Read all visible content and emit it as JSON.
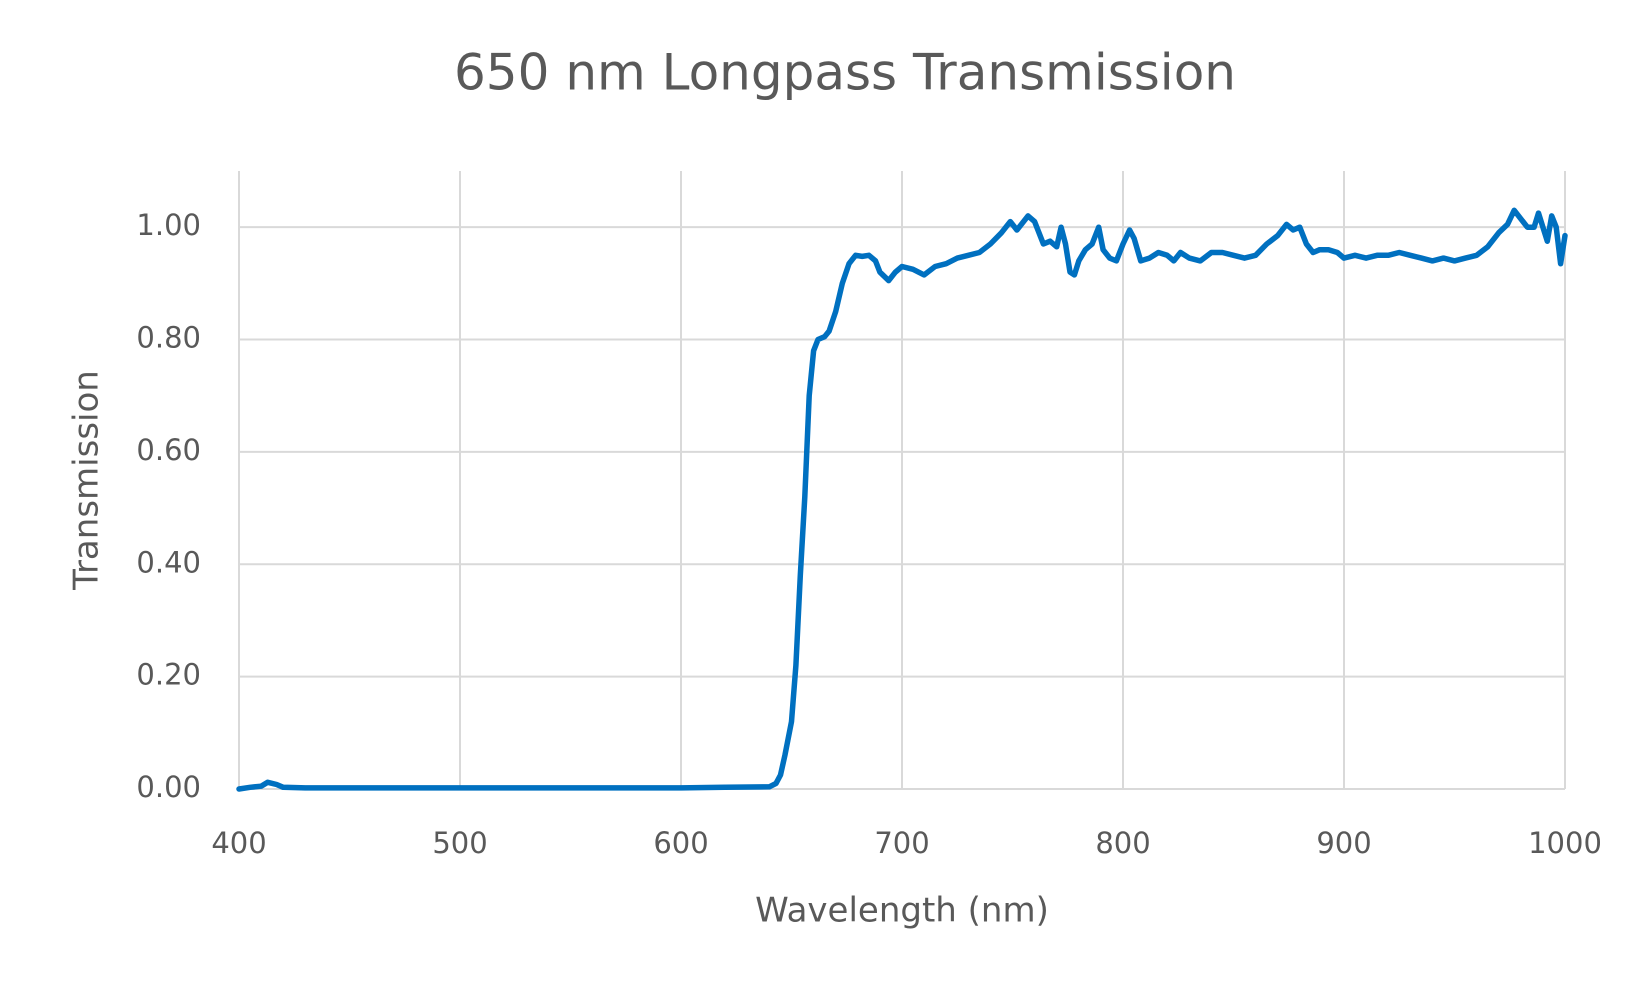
{
  "chart_data": {
    "type": "line",
    "title": "650 nm Longpass Transmission",
    "x_label": "Wavelength (nm)",
    "y_label": "Transmission",
    "color": "#0070c0",
    "grid": true,
    "xlim": [
      400,
      1000
    ],
    "xticks": [
      400,
      500,
      600,
      700,
      800,
      900,
      1000
    ],
    "ylim": [
      0,
      1.1
    ],
    "yticks": [
      {
        "value": 0,
        "label": "0.00"
      },
      {
        "value": 0.2,
        "label": "0.20"
      },
      {
        "value": 0.4,
        "label": "0.40"
      },
      {
        "value": 0.6,
        "label": "0.60"
      },
      {
        "value": 0.8,
        "label": "0.80"
      },
      {
        "value": 1,
        "label": "1.00"
      }
    ],
    "x": [
      400,
      405,
      410,
      413,
      417,
      420,
      430,
      450,
      500,
      550,
      600,
      620,
      640,
      643,
      645,
      647,
      650,
      652,
      654,
      656,
      658,
      660,
      662,
      665,
      667,
      670,
      673,
      676,
      679,
      682,
      685,
      688,
      690,
      694,
      697,
      700,
      705,
      710,
      715,
      720,
      725,
      730,
      735,
      740,
      745,
      749,
      752,
      757,
      760,
      764,
      767,
      770,
      772,
      774,
      776,
      778,
      780,
      783,
      786,
      789,
      791,
      794,
      797,
      800,
      803,
      805,
      808,
      812,
      816,
      820,
      823,
      826,
      830,
      835,
      840,
      845,
      850,
      855,
      860,
      865,
      870,
      874,
      877,
      880,
      883,
      886,
      889,
      893,
      897,
      900,
      905,
      910,
      915,
      920,
      925,
      930,
      935,
      940,
      945,
      950,
      955,
      960,
      965,
      970,
      974,
      977,
      980,
      983,
      986,
      988,
      990,
      992,
      994,
      996,
      998,
      1000
    ],
    "values": [
      0,
      0.003,
      0.005,
      0.012,
      0.008,
      0.003,
      0.002,
      0.002,
      0.002,
      0.002,
      0.002,
      0.003,
      0.004,
      0.01,
      0.025,
      0.06,
      0.12,
      0.22,
      0.38,
      0.52,
      0.7,
      0.78,
      0.8,
      0.805,
      0.815,
      0.85,
      0.9,
      0.935,
      0.95,
      0.948,
      0.95,
      0.94,
      0.92,
      0.905,
      0.92,
      0.93,
      0.925,
      0.915,
      0.93,
      0.935,
      0.945,
      0.95,
      0.955,
      0.97,
      0.99,
      1.01,
      0.995,
      1.02,
      1.01,
      0.97,
      0.975,
      0.965,
      1.0,
      0.97,
      0.92,
      0.915,
      0.94,
      0.96,
      0.97,
      1.0,
      0.96,
      0.945,
      0.94,
      0.97,
      0.995,
      0.98,
      0.94,
      0.945,
      0.955,
      0.95,
      0.94,
      0.955,
      0.945,
      0.94,
      0.955,
      0.955,
      0.95,
      0.945,
      0.95,
      0.97,
      0.985,
      1.005,
      0.995,
      1.0,
      0.97,
      0.955,
      0.96,
      0.96,
      0.955,
      0.945,
      0.95,
      0.945,
      0.95,
      0.95,
      0.955,
      0.95,
      0.945,
      0.94,
      0.945,
      0.94,
      0.945,
      0.95,
      0.965,
      0.99,
      1.005,
      1.03,
      1.015,
      1.0,
      1.0,
      1.025,
      1.0,
      0.975,
      1.02,
      1.0,
      0.935,
      0.985
    ]
  }
}
